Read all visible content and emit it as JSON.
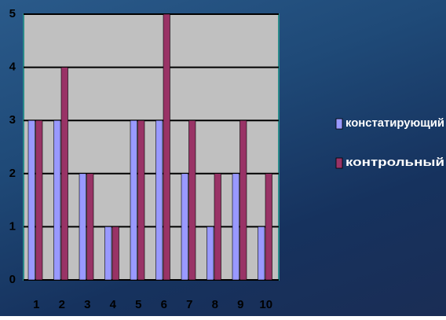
{
  "chart_data": {
    "type": "bar",
    "categories": [
      "1",
      "2",
      "3",
      "4",
      "5",
      "6",
      "7",
      "8",
      "9",
      "10"
    ],
    "series": [
      {
        "name": "констатирующий",
        "color": "#9999ff",
        "values": [
          3,
          3,
          2,
          1,
          3,
          3,
          2,
          1,
          2,
          1
        ]
      },
      {
        "name": "контрольный",
        "color": "#993366",
        "values": [
          3,
          4,
          2,
          1,
          3,
          5,
          3,
          2,
          3,
          2
        ]
      }
    ],
    "ylim": [
      0,
      5
    ],
    "yticks": [
      0,
      1,
      2,
      3,
      4,
      5
    ],
    "grid": true,
    "legend": "right"
  }
}
